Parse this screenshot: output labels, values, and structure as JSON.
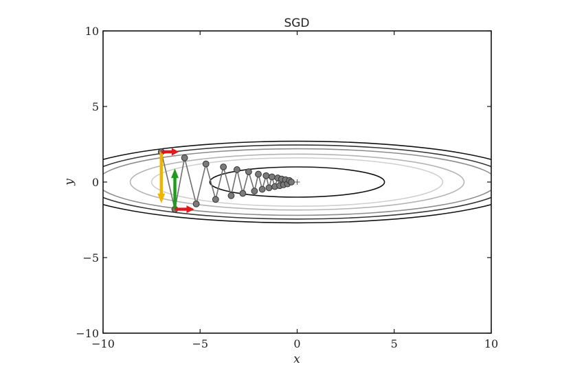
{
  "chart_data": {
    "type": "line",
    "title": "SGD",
    "xlabel": "x",
    "ylabel": "y",
    "xlim": [
      -10,
      10
    ],
    "ylim": [
      -10,
      10
    ],
    "x_ticks": [
      -10,
      -5,
      0,
      5,
      10
    ],
    "y_ticks": [
      -10,
      -5,
      0,
      5,
      10
    ],
    "x_tick_labels": [
      "−10",
      "−5",
      "0",
      "5",
      "10"
    ],
    "y_tick_labels": [
      "−10",
      "−5",
      "0",
      "5",
      "10"
    ],
    "grid": false,
    "minimum_marker": {
      "x": 0,
      "y": 0
    },
    "contours": [
      {
        "a": 4.5,
        "b": 1.0,
        "color": "#111111"
      },
      {
        "a": 7.5,
        "b": 1.6,
        "color": "#cfcfcf"
      },
      {
        "a": 8.6,
        "b": 1.85,
        "color": "#b4b4b4"
      },
      {
        "a": 10.3,
        "b": 2.2,
        "color": "#8c8c8c"
      },
      {
        "a": 11.0,
        "b": 2.45,
        "color": "#333333"
      },
      {
        "a": 12.0,
        "b": 2.7,
        "color": "#111111"
      }
    ],
    "series": [
      {
        "x": [
          -7.0,
          -6.3,
          -5.8,
          -5.2,
          -4.7,
          -4.2,
          -3.8,
          -3.4,
          -3.1,
          -2.8,
          -2.5,
          -2.2,
          -2.0,
          -1.8,
          -1.6,
          -1.45,
          -1.3,
          -1.15,
          -1.0,
          -0.9,
          -0.8,
          -0.7,
          -0.6,
          -0.5,
          -0.4,
          -0.3
        ],
        "y": [
          2.0,
          -1.8,
          1.6,
          -1.45,
          1.2,
          -1.15,
          1.0,
          -0.9,
          0.82,
          -0.75,
          0.68,
          -0.6,
          0.52,
          -0.48,
          0.42,
          -0.38,
          0.34,
          -0.3,
          0.27,
          -0.24,
          0.2,
          -0.18,
          0.15,
          -0.12,
          0.1,
          0.0
        ]
      }
    ],
    "arrows": [
      {
        "color": "#f0b400",
        "from": [
          -7.0,
          2.0
        ],
        "to": [
          -7.0,
          -1.4
        ]
      },
      {
        "color": "#1f9a1f",
        "from": [
          -6.3,
          -1.8
        ],
        "to": [
          -6.3,
          0.9
        ]
      },
      {
        "color": "#e01a1a",
        "from": [
          -7.0,
          2.0
        ],
        "to": [
          -6.1,
          2.0
        ]
      },
      {
        "color": "#e01a1a",
        "from": [
          -6.3,
          -1.8
        ],
        "to": [
          -5.3,
          -1.8
        ]
      }
    ]
  }
}
